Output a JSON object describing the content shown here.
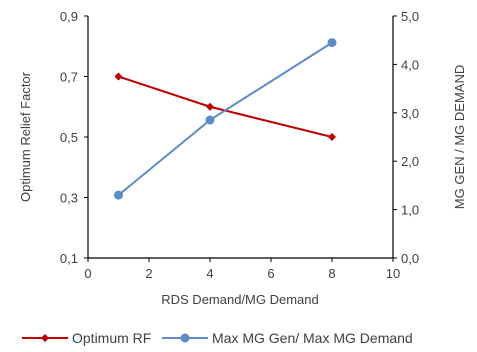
{
  "chart_data": {
    "type": "line",
    "title": "",
    "xlabel": "RDS Demand/MG Demand",
    "ylabel_left": "Optimum Relief Factor",
    "ylabel_right": "MG GEN / MG DEMAND",
    "xlim": [
      0,
      10
    ],
    "ylim_left": [
      0.1,
      0.9
    ],
    "ylim_right": [
      0,
      5
    ],
    "x_ticks": [
      0,
      2,
      4,
      6,
      8,
      10
    ],
    "x_tick_labels": [
      "0",
      "2",
      "4",
      "6",
      "8",
      "10"
    ],
    "y_left_ticks": [
      0.1,
      0.3,
      0.5,
      0.7,
      0.9
    ],
    "y_left_tick_labels": [
      "0,1",
      "0,3",
      "0,5",
      "0,7",
      "0,9"
    ],
    "y_right_ticks": [
      0,
      1,
      2,
      3,
      4,
      5
    ],
    "y_right_tick_labels": [
      "0,0",
      "1,0",
      "2,0",
      "3,0",
      "4,0",
      "5,0"
    ],
    "grid": false,
    "legend_position": "bottom",
    "series": [
      {
        "name": "Optimum RF",
        "axis": "left",
        "color": "#c00000",
        "marker": "diamond",
        "x": [
          1,
          4,
          8
        ],
        "y": [
          0.7,
          0.6,
          0.5
        ]
      },
      {
        "name": "Max MG Gen/ Max MG Demand",
        "axis": "right",
        "color": "#5b8cc4",
        "marker": "circle",
        "x": [
          1,
          4,
          8
        ],
        "y": [
          1.3,
          2.85,
          4.45
        ]
      }
    ]
  }
}
